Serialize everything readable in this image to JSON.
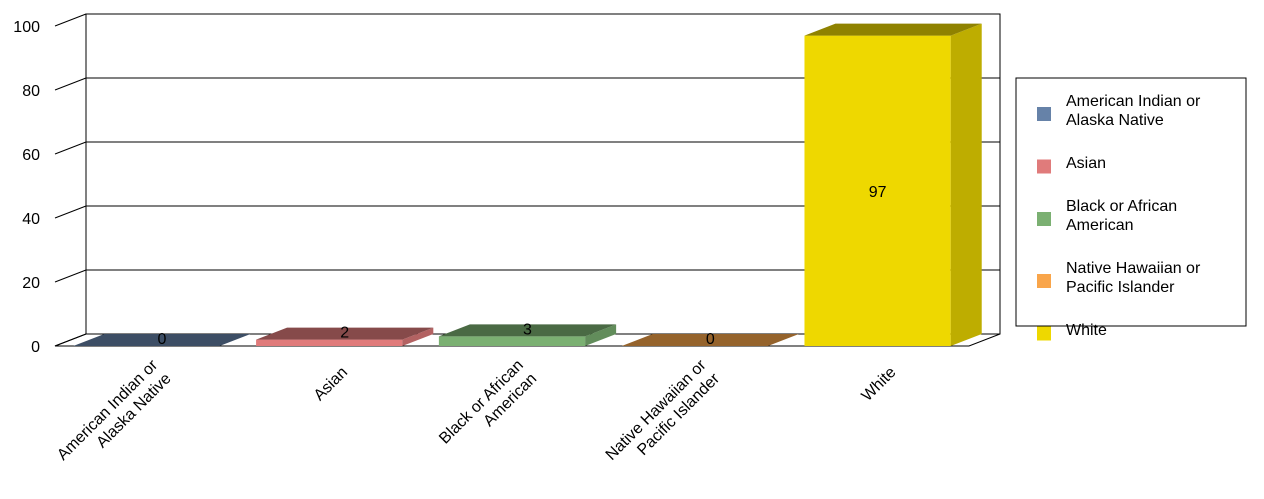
{
  "chart_data": {
    "type": "bar3d",
    "categories": [
      "American Indian or Alaska Native",
      "Asian",
      "Black or African American",
      "Native Hawaiian or Pacific Islander",
      "White"
    ],
    "values": [
      0,
      2,
      3,
      0,
      97
    ],
    "colors": [
      "#6682a8",
      "#e07b7b",
      "#7bb072",
      "#f9a54a",
      "#eed800"
    ],
    "ylim": [
      0,
      100
    ],
    "yticks": [
      0,
      20,
      40,
      60,
      80,
      100
    ],
    "grid": true,
    "legend": "right"
  }
}
